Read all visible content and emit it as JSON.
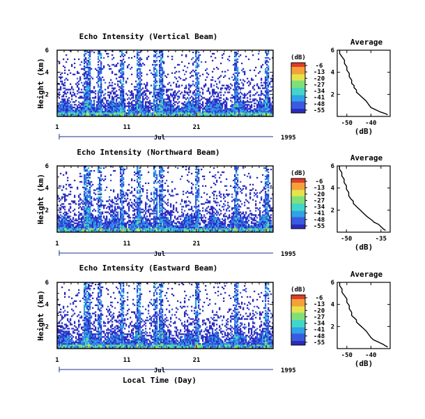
{
  "chart_data": [
    {
      "type": "heatmap",
      "title": "Echo Intensity (Vertical Beam)",
      "ylabel": "Height (km)",
      "ylim": [
        0,
        6
      ],
      "yticks": [
        "6",
        "4",
        "2"
      ],
      "xticks": [
        "1",
        "11",
        "21"
      ],
      "xlim": [
        1,
        32
      ],
      "month_label": "Jul",
      "year_label": "1995",
      "colorbar": {
        "unit": "(dB)",
        "ticks": [
          "-6",
          "-13",
          "-20",
          "-27",
          "-34",
          "-41",
          "-48",
          "-55"
        ],
        "range": [
          -55,
          -6
        ]
      },
      "profile": {
        "title": "Average",
        "xlabel": "(dB)",
        "xticks": [
          "-50",
          "-40"
        ],
        "xlim": [
          -54,
          -32
        ],
        "yticks": [
          "6",
          "4",
          "2"
        ],
        "ylim": [
          0,
          6
        ],
        "x": [
          -53,
          -53,
          -52,
          -51,
          -51,
          -50,
          -50,
          -49,
          -49,
          -48,
          -48,
          -47,
          -47,
          -46,
          -46,
          -45,
          -44,
          -43,
          -42,
          -41,
          -40,
          -38,
          -36,
          -34,
          -33
        ],
        "y": [
          6.0,
          5.7,
          5.4,
          5.1,
          4.8,
          4.5,
          4.2,
          3.9,
          3.6,
          3.3,
          3.0,
          2.8,
          2.6,
          2.4,
          2.2,
          2.0,
          1.8,
          1.6,
          1.4,
          1.1,
          0.8,
          0.6,
          0.4,
          0.25,
          0.15
        ]
      }
    },
    {
      "type": "heatmap",
      "title": "Echo Intensity (Northward Beam)",
      "ylabel": "Height (km)",
      "ylim": [
        0,
        6
      ],
      "yticks": [
        "6",
        "4",
        "2"
      ],
      "xticks": [
        "1",
        "11",
        "21"
      ],
      "xlim": [
        1,
        32
      ],
      "month_label": "Jul",
      "year_label": "1995",
      "colorbar": {
        "unit": "(dB)",
        "ticks": [
          "-6",
          "-13",
          "-20",
          "-27",
          "-34",
          "-41",
          "-48",
          "-55"
        ],
        "range": [
          -55,
          -6
        ]
      },
      "profile": {
        "title": "Average",
        "xlabel": "(dB)",
        "xticks": [
          "-50",
          "-35"
        ],
        "xlim": [
          -54,
          -31
        ],
        "yticks": [
          "6",
          "4",
          "2"
        ],
        "ylim": [
          0,
          6
        ],
        "x": [
          -53,
          -53,
          -52,
          -52,
          -51,
          -51,
          -50,
          -50,
          -49,
          -49,
          -48,
          -47,
          -47,
          -46,
          -45,
          -44,
          -43,
          -42,
          -41,
          -39,
          -38,
          -36,
          -35,
          -34,
          -33
        ],
        "y": [
          6.0,
          5.7,
          5.4,
          5.1,
          4.8,
          4.5,
          4.2,
          3.9,
          3.6,
          3.3,
          3.0,
          2.8,
          2.6,
          2.4,
          2.2,
          2.0,
          1.8,
          1.6,
          1.4,
          1.1,
          0.9,
          0.7,
          0.5,
          0.3,
          0.15
        ]
      }
    },
    {
      "type": "heatmap",
      "title": "Echo Intensity (Eastward Beam)",
      "ylabel": "Height (km)",
      "ylim": [
        0,
        6
      ],
      "yticks": [
        "6",
        "4",
        "2"
      ],
      "xticks": [
        "1",
        "11",
        "21"
      ],
      "xlim": [
        1,
        32
      ],
      "month_label": "Jul",
      "year_label": "1995",
      "xlabel": "Local Time (Day)",
      "colorbar": {
        "unit": "(dB)",
        "ticks": [
          "-6",
          "-13",
          "-20",
          "-27",
          "-34",
          "-41",
          "-48",
          "-55"
        ],
        "range": [
          -55,
          -6
        ]
      },
      "profile": {
        "title": "Average",
        "xlabel": "(dB)",
        "xticks": [
          "-50",
          "-40"
        ],
        "xlim": [
          -54,
          -32
        ],
        "yticks": [
          "6",
          "4",
          "2"
        ],
        "ylim": [
          0,
          6
        ],
        "x": [
          -53,
          -53,
          -52,
          -52,
          -51,
          -50,
          -50,
          -49,
          -49,
          -48,
          -48,
          -47,
          -46,
          -46,
          -45,
          -44,
          -43,
          -42,
          -41,
          -40,
          -39,
          -37,
          -35,
          -34,
          -33
        ],
        "y": [
          6.0,
          5.7,
          5.4,
          5.1,
          4.8,
          4.5,
          4.2,
          3.9,
          3.6,
          3.3,
          3.0,
          2.8,
          2.6,
          2.4,
          2.2,
          2.0,
          1.8,
          1.6,
          1.3,
          1.0,
          0.8,
          0.6,
          0.4,
          0.25,
          0.15
        ]
      }
    }
  ],
  "colors": {
    "scale": [
      "#2b2bbf",
      "#3a5be0",
      "#2fa3e8",
      "#43d6c8",
      "#7fe07a",
      "#e6e34a",
      "#f5a13a",
      "#e23b2a"
    ]
  }
}
